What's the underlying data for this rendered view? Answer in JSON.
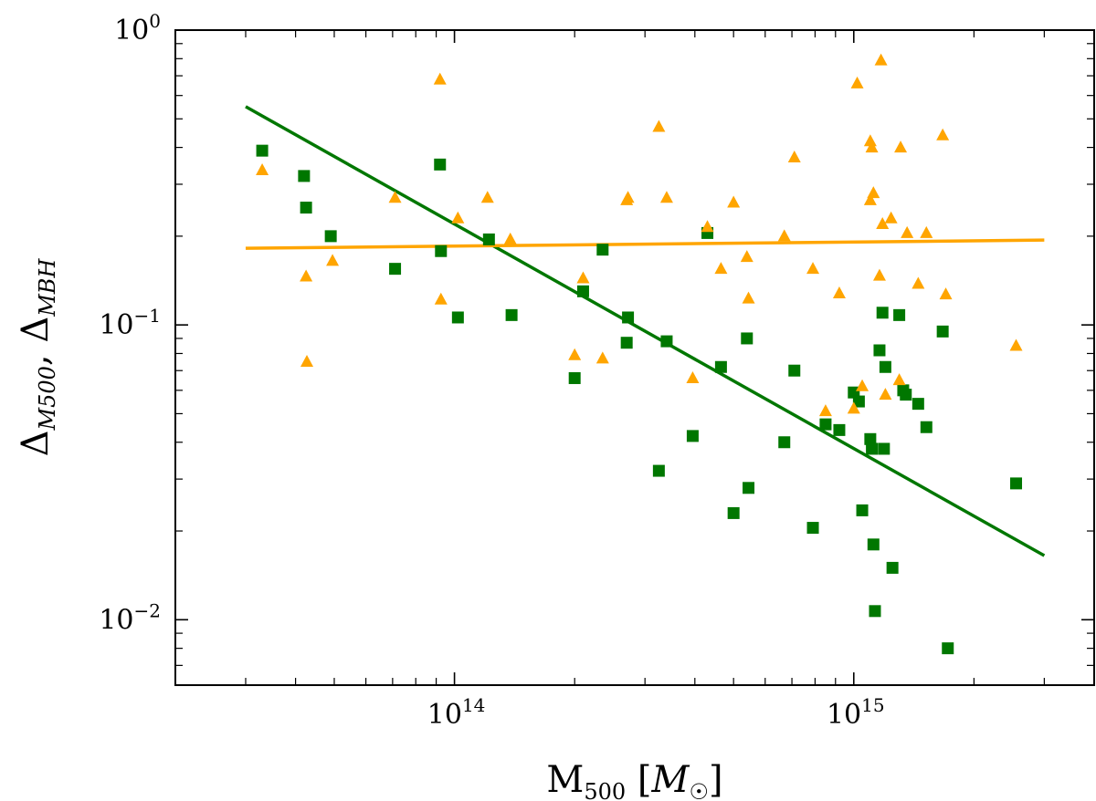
{
  "chart_data": {
    "type": "scatter",
    "xscale": "log",
    "yscale": "log",
    "xlim": [
      20000000000000,
      4000000000000000
    ],
    "ylim": [
      0.006,
      1.0
    ],
    "grid": false,
    "legend": "none",
    "title": "",
    "xlabel": {
      "main": "M",
      "sub": "500",
      "unit_open": " [",
      "unit_main": "M",
      "unit_sub": "☉",
      "unit_close": "]"
    },
    "ylabel": {
      "part1_main": "Δ",
      "part1_sub": "M500",
      "sep": ", ",
      "part2_main": "Δ",
      "part2_sub": "MBH"
    },
    "x_ticks": [
      {
        "value": 100000000000000,
        "base": "10",
        "exp": "14"
      },
      {
        "value": 1000000000000000,
        "base": "10",
        "exp": "15"
      }
    ],
    "y_ticks": [
      {
        "value": 0.01,
        "base": "10",
        "exp": "−2"
      },
      {
        "value": 0.1,
        "base": "10",
        "exp": "−1"
      },
      {
        "value": 1.0,
        "base": "10",
        "exp": "0"
      }
    ],
    "series": [
      {
        "name": "Delta M500",
        "marker": "square",
        "color": "#007700",
        "points": [
          [
            33000000000000.0,
            0.39
          ],
          [
            42000000000000.0,
            0.32
          ],
          [
            42500000000000.0,
            0.25
          ],
          [
            49000000000000.0,
            0.2
          ],
          [
            71000000000000.0,
            0.155
          ],
          [
            92000000000000.0,
            0.35
          ],
          [
            92500000000000.0,
            0.178
          ],
          [
            102000000000000.0,
            0.106
          ],
          [
            122000000000000.0,
            0.195
          ],
          [
            139000000000000.0,
            0.108
          ],
          [
            200000000000000.0,
            0.066
          ],
          [
            210000000000000.0,
            0.13
          ],
          [
            235000000000000.0,
            0.18
          ],
          [
            270000000000000.0,
            0.087
          ],
          [
            272000000000000.0,
            0.106
          ],
          [
            325000000000000.0,
            0.032
          ],
          [
            340000000000000.0,
            0.088
          ],
          [
            395000000000000.0,
            0.042
          ],
          [
            430000000000000.0,
            0.205
          ],
          [
            465000000000000.0,
            0.072
          ],
          [
            500000000000000.0,
            0.023
          ],
          [
            540000000000000.0,
            0.09
          ],
          [
            545000000000000.0,
            0.028
          ],
          [
            670000000000000.0,
            0.04
          ],
          [
            710000000000000.0,
            0.07
          ],
          [
            790000000000000.0,
            0.0205
          ],
          [
            850000000000000.0,
            0.046
          ],
          [
            920000000000000.0,
            0.044
          ],
          [
            1000000000000000.0,
            0.059
          ],
          [
            1030000000000000.0,
            0.055
          ],
          [
            1050000000000000.0,
            0.0235
          ],
          [
            1100000000000000.0,
            0.041
          ],
          [
            1110000000000000.0,
            0.038
          ],
          [
            1120000000000000.0,
            0.018
          ],
          [
            1130000000000000.0,
            0.0107
          ],
          [
            1160000000000000.0,
            0.082
          ],
          [
            1180000000000000.0,
            0.11
          ],
          [
            1190000000000000.0,
            0.038
          ],
          [
            1200000000000000.0,
            0.072
          ],
          [
            1250000000000000.0,
            0.015
          ],
          [
            1300000000000000.0,
            0.108
          ],
          [
            1330000000000000.0,
            0.06
          ],
          [
            1350000000000000.0,
            0.058
          ],
          [
            1450000000000000.0,
            0.054
          ],
          [
            1520000000000000.0,
            0.045
          ],
          [
            1670000000000000.0,
            0.095
          ],
          [
            1720000000000000.0,
            0.008
          ],
          [
            2550000000000000.0,
            0.029
          ]
        ],
        "fit_line": [
          [
            30000000000000.0,
            0.55
          ],
          [
            3000000000000000.0,
            0.0165
          ]
        ]
      },
      {
        "name": "Delta MBH",
        "marker": "triangle",
        "color": "#ffa500",
        "points": [
          [
            33000000000000.0,
            0.335
          ],
          [
            42500000000000.0,
            0.146
          ],
          [
            42700000000000.0,
            0.075
          ],
          [
            49500000000000.0,
            0.165
          ],
          [
            71000000000000.0,
            0.27
          ],
          [
            92000000000000.0,
            0.68
          ],
          [
            92500000000000.0,
            0.122
          ],
          [
            102000000000000.0,
            0.23
          ],
          [
            121000000000000.0,
            0.27
          ],
          [
            138000000000000.0,
            0.195
          ],
          [
            200000000000000.0,
            0.079
          ],
          [
            210000000000000.0,
            0.144
          ],
          [
            235000000000000.0,
            0.077
          ],
          [
            270000000000000.0,
            0.265
          ],
          [
            272000000000000.0,
            0.27
          ],
          [
            325000000000000.0,
            0.47
          ],
          [
            340000000000000.0,
            0.27
          ],
          [
            395000000000000.0,
            0.066
          ],
          [
            430000000000000.0,
            0.215
          ],
          [
            465000000000000.0,
            0.155
          ],
          [
            500000000000000.0,
            0.26
          ],
          [
            540000000000000.0,
            0.17
          ],
          [
            545000000000000.0,
            0.123
          ],
          [
            670000000000000.0,
            0.2
          ],
          [
            710000000000000.0,
            0.37
          ],
          [
            790000000000000.0,
            0.155
          ],
          [
            850000000000000.0,
            0.051
          ],
          [
            920000000000000.0,
            0.128
          ],
          [
            1000000000000000.0,
            0.052
          ],
          [
            1020000000000000.0,
            0.66
          ],
          [
            1050000000000000.0,
            0.062
          ],
          [
            1100000000000000.0,
            0.42
          ],
          [
            1100000000000000.0,
            0.265
          ],
          [
            1110000000000000.0,
            0.4
          ],
          [
            1120000000000000.0,
            0.28
          ],
          [
            1160000000000000.0,
            0.147
          ],
          [
            1170000000000000.0,
            0.79
          ],
          [
            1180000000000000.0,
            0.22
          ],
          [
            1200000000000000.0,
            0.058
          ],
          [
            1240000000000000.0,
            0.23
          ],
          [
            1300000000000000.0,
            0.065
          ],
          [
            1310000000000000.0,
            0.4
          ],
          [
            1360000000000000.0,
            0.205
          ],
          [
            1450000000000000.0,
            0.138
          ],
          [
            1520000000000000.0,
            0.205
          ],
          [
            1670000000000000.0,
            0.44
          ],
          [
            1700000000000000.0,
            0.127
          ],
          [
            2550000000000000.0,
            0.085
          ]
        ],
        "fit_line": [
          [
            30000000000000.0,
            0.182
          ],
          [
            3000000000000000.0,
            0.194
          ]
        ]
      }
    ]
  }
}
